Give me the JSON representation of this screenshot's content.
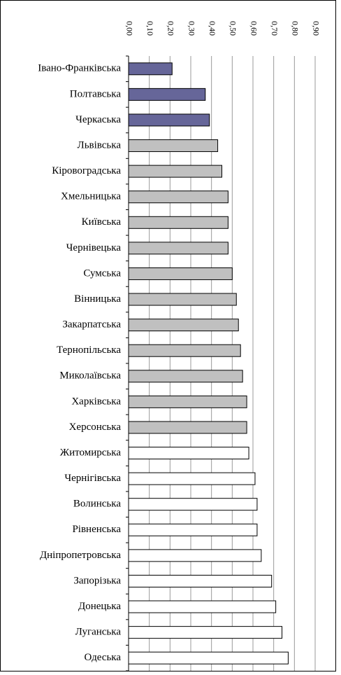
{
  "chart_data": {
    "type": "bar",
    "orientation": "horizontal",
    "categories": [
      "Івано-Франківська",
      "Полтавська",
      "Черкаська",
      "Львівська",
      "Кіровоградська",
      "Хмельницька",
      "Київська",
      "Чернівецька",
      "Сумська",
      "Вінницька",
      "Закарпатська",
      "Тернопільська",
      "Миколаївська",
      "Харківська",
      "Херсонська",
      "Житомирська",
      "Чернігівська",
      "Волинська",
      "Рівненська",
      "Дніпропетровська",
      "Запорізька",
      "Донецька",
      "Луганська",
      "Одеська"
    ],
    "values": [
      0.21,
      0.37,
      0.39,
      0.43,
      0.45,
      0.48,
      0.48,
      0.48,
      0.5,
      0.52,
      0.53,
      0.54,
      0.55,
      0.57,
      0.57,
      0.58,
      0.61,
      0.62,
      0.62,
      0.64,
      0.69,
      0.71,
      0.74,
      0.77
    ],
    "colors": [
      "#666699",
      "#666699",
      "#666699",
      "#c0c0c0",
      "#c0c0c0",
      "#c0c0c0",
      "#c0c0c0",
      "#c0c0c0",
      "#c0c0c0",
      "#c0c0c0",
      "#c0c0c0",
      "#c0c0c0",
      "#c0c0c0",
      "#c0c0c0",
      "#c0c0c0",
      "#ffffff",
      "#ffffff",
      "#ffffff",
      "#ffffff",
      "#ffffff",
      "#ffffff",
      "#ffffff",
      "#ffffff",
      "#ffffff"
    ],
    "xlim": [
      0,
      0.9
    ],
    "xticks": [
      {
        "value": 0,
        "label": "0,00"
      },
      {
        "value": 0.1,
        "label": "0,10"
      },
      {
        "value": 0.2,
        "label": "0,20"
      },
      {
        "value": 0.3,
        "label": "0,30"
      },
      {
        "value": 0.4,
        "label": "0,40"
      },
      {
        "value": 0.5,
        "label": "0,50"
      },
      {
        "value": 0.6,
        "label": "0,60"
      },
      {
        "value": 0.7,
        "label": "0,70"
      },
      {
        "value": 0.8,
        "label": "0,80"
      },
      {
        "value": 0.9,
        "label": "0,90"
      }
    ],
    "grid": true
  }
}
